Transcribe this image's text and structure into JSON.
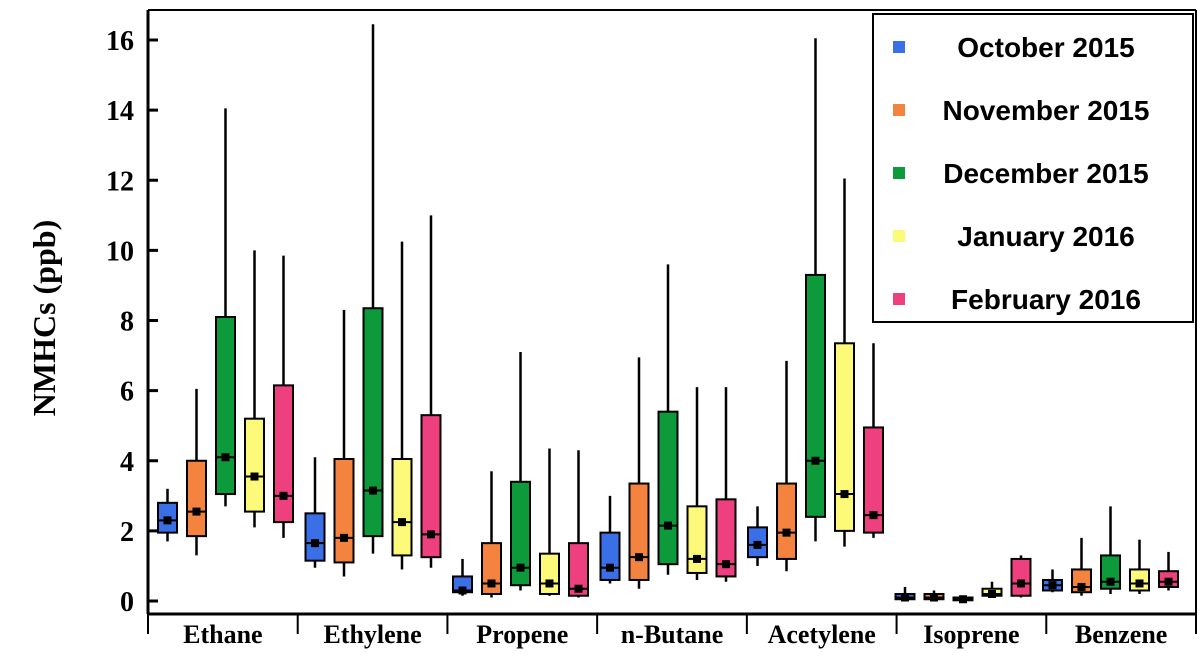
{
  "chart_data": {
    "type": "box",
    "ylabel": "NMHCs (ppb)",
    "xlabel": "",
    "ylim": [
      0,
      16.5
    ],
    "yticks": [
      0,
      2,
      4,
      6,
      8,
      10,
      12,
      14,
      16
    ],
    "legend_position": "top-right",
    "categories": [
      "Ethane",
      "Ethylene",
      "Propene",
      "n-Butane",
      "Acetylene",
      "Isoprene",
      "Benzene"
    ],
    "series": [
      {
        "name": "October 2015",
        "color": "#3b6fe8",
        "boxes": [
          {
            "min": 1.7,
            "q1": 1.95,
            "median": 2.3,
            "q3": 2.8,
            "max": 3.2
          },
          {
            "min": 0.95,
            "q1": 1.15,
            "median": 1.65,
            "q3": 2.5,
            "max": 4.1
          },
          {
            "min": 0.15,
            "q1": 0.25,
            "median": 0.3,
            "q3": 0.7,
            "max": 1.2
          },
          {
            "min": 0.5,
            "q1": 0.6,
            "median": 0.95,
            "q3": 1.95,
            "max": 3.0
          },
          {
            "min": 1.0,
            "q1": 1.25,
            "median": 1.6,
            "q3": 2.1,
            "max": 2.7
          },
          {
            "min": 0.0,
            "q1": 0.05,
            "median": 0.1,
            "q3": 0.2,
            "max": 0.4
          },
          {
            "min": 0.25,
            "q1": 0.3,
            "median": 0.45,
            "q3": 0.6,
            "max": 0.9
          }
        ]
      },
      {
        "name": "November 2015",
        "color": "#f4833f",
        "boxes": [
          {
            "min": 1.3,
            "q1": 1.85,
            "median": 2.55,
            "q3": 4.0,
            "max": 6.05
          },
          {
            "min": 0.7,
            "q1": 1.1,
            "median": 1.8,
            "q3": 4.05,
            "max": 8.3
          },
          {
            "min": 0.1,
            "q1": 0.2,
            "median": 0.5,
            "q3": 1.65,
            "max": 3.7
          },
          {
            "min": 0.35,
            "q1": 0.6,
            "median": 1.25,
            "q3": 3.35,
            "max": 6.95
          },
          {
            "min": 0.85,
            "q1": 1.2,
            "median": 1.95,
            "q3": 3.35,
            "max": 6.85
          },
          {
            "min": 0.0,
            "q1": 0.05,
            "median": 0.1,
            "q3": 0.2,
            "max": 0.3
          },
          {
            "min": 0.15,
            "q1": 0.25,
            "median": 0.4,
            "q3": 0.9,
            "max": 1.8
          }
        ]
      },
      {
        "name": "December 2015",
        "color": "#0c9a3a",
        "boxes": [
          {
            "min": 2.7,
            "q1": 3.05,
            "median": 4.1,
            "q3": 8.1,
            "max": 14.05
          },
          {
            "min": 1.35,
            "q1": 1.85,
            "median": 3.15,
            "q3": 8.35,
            "max": 16.45
          },
          {
            "min": 0.3,
            "q1": 0.45,
            "median": 0.95,
            "q3": 3.4,
            "max": 7.1
          },
          {
            "min": 0.75,
            "q1": 1.05,
            "median": 2.15,
            "q3": 5.4,
            "max": 9.6
          },
          {
            "min": 1.7,
            "q1": 2.4,
            "median": 4.0,
            "q3": 9.3,
            "max": 16.05
          },
          {
            "min": 0.0,
            "q1": 0.02,
            "median": 0.05,
            "q3": 0.1,
            "max": 0.15
          },
          {
            "min": 0.2,
            "q1": 0.35,
            "median": 0.55,
            "q3": 1.3,
            "max": 2.7
          }
        ]
      },
      {
        "name": "January 2016",
        "color": "#fdf979",
        "boxes": [
          {
            "min": 2.1,
            "q1": 2.55,
            "median": 3.55,
            "q3": 5.2,
            "max": 10.0
          },
          {
            "min": 0.9,
            "q1": 1.3,
            "median": 2.25,
            "q3": 4.05,
            "max": 10.25
          },
          {
            "min": 0.15,
            "q1": 0.2,
            "median": 0.5,
            "q3": 1.35,
            "max": 4.35
          },
          {
            "min": 0.6,
            "q1": 0.8,
            "median": 1.2,
            "q3": 2.7,
            "max": 6.1
          },
          {
            "min": 1.55,
            "q1": 2.0,
            "median": 3.05,
            "q3": 7.35,
            "max": 12.05
          },
          {
            "min": 0.1,
            "q1": 0.15,
            "median": 0.2,
            "q3": 0.35,
            "max": 0.55
          },
          {
            "min": 0.2,
            "q1": 0.3,
            "median": 0.5,
            "q3": 0.9,
            "max": 1.75
          }
        ]
      },
      {
        "name": "February 2016",
        "color": "#ee3f7f",
        "boxes": [
          {
            "min": 1.8,
            "q1": 2.25,
            "median": 3.0,
            "q3": 6.15,
            "max": 9.85
          },
          {
            "min": 0.95,
            "q1": 1.25,
            "median": 1.9,
            "q3": 5.3,
            "max": 11.0
          },
          {
            "min": 0.1,
            "q1": 0.15,
            "median": 0.35,
            "q3": 1.65,
            "max": 4.3
          },
          {
            "min": 0.55,
            "q1": 0.7,
            "median": 1.05,
            "q3": 2.9,
            "max": 6.1
          },
          {
            "min": 1.8,
            "q1": 1.95,
            "median": 2.45,
            "q3": 4.95,
            "max": 7.35
          },
          {
            "min": 0.1,
            "q1": 0.15,
            "median": 0.5,
            "q3": 1.2,
            "max": 1.3
          },
          {
            "min": 0.3,
            "q1": 0.4,
            "median": 0.55,
            "q3": 0.85,
            "max": 1.4
          }
        ]
      }
    ]
  }
}
